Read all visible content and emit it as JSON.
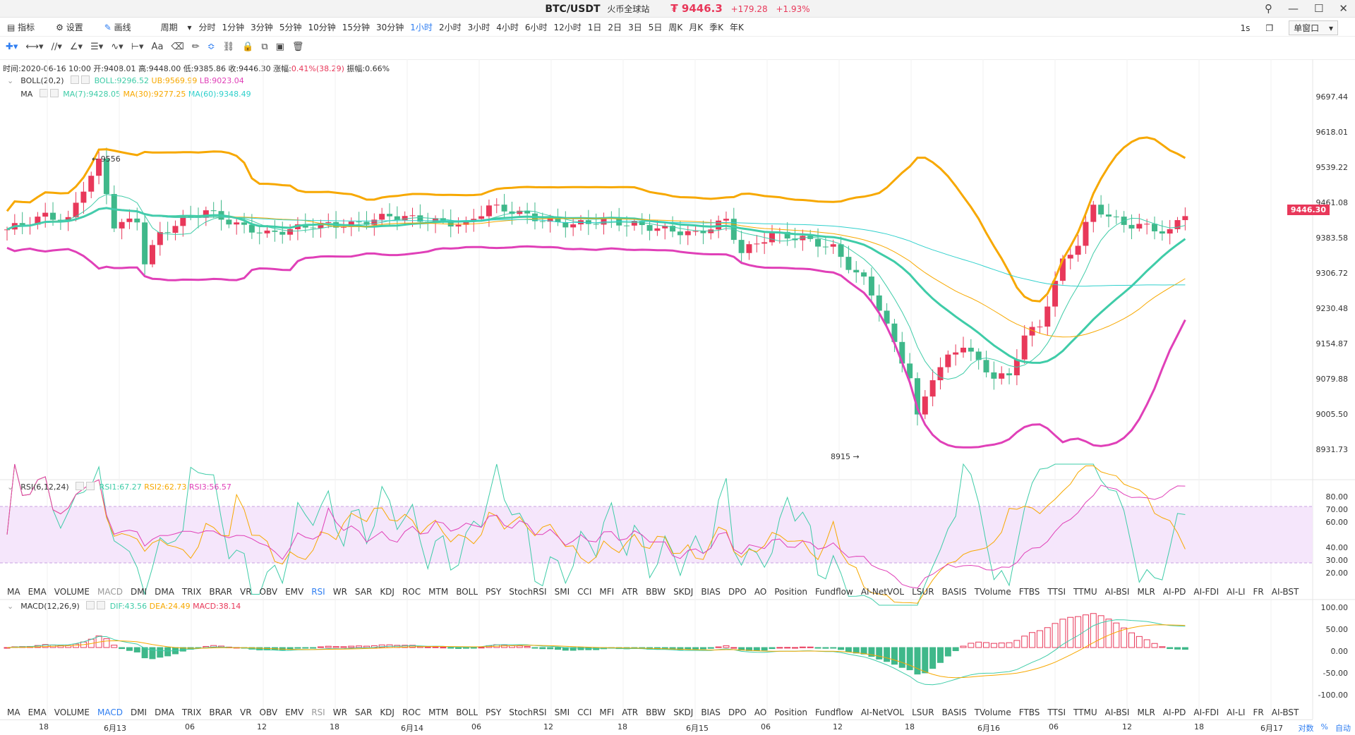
{
  "titlebar": {
    "pair": "BTC/USDT",
    "station": "火币全球站",
    "price": "₮ 9446.3",
    "change_abs": "+179.28",
    "change_pct": "+1.93%"
  },
  "toolbar1": {
    "indicator": "指标",
    "settings": "设置",
    "draw": "画线",
    "period_label": "周期",
    "periods": [
      "分时",
      "1分钟",
      "3分钟",
      "5分钟",
      "10分钟",
      "15分钟",
      "30分钟",
      "1小时",
      "2小时",
      "3小时",
      "4小时",
      "6小时",
      "12小时",
      "1日",
      "2日",
      "3日",
      "5日",
      "周K",
      "月K",
      "季K",
      "年K"
    ],
    "active_period": "1小时",
    "right_interval": "1s",
    "single_window": "单窗口"
  },
  "infoline": {
    "time": "时间:2020-06-16 10:00",
    "open": "开:9408.01",
    "high": "高:9448.00",
    "low": "低:9385.86",
    "close": "收:9446.30",
    "change_label": "涨幅:",
    "change_value": "0.41%(38.29)",
    "amplitude": "振幅:0.66%"
  },
  "boll": {
    "name": "BOLL(20,2)",
    "mid": "BOLL:9296.52",
    "ub": "UB:9569.99",
    "lb": "LB:9023.04"
  },
  "ma": {
    "name": "MA",
    "ma7": "MA(7):9428.05",
    "ma30": "MA(30):9277.25",
    "ma60": "MA(60):9348.49"
  },
  "rsi": {
    "name": "RSI(6,12,24)",
    "r1": "RSI1:67.27",
    "r2": "RSI2:62.73",
    "r3": "RSI3:56.57"
  },
  "macd": {
    "name": "MACD(12,26,9)",
    "dif": "DIF:43.56",
    "dea": "DEA:24.49",
    "macd": "MACD:38.14"
  },
  "price_axis": [
    "9697.44",
    "9618.01",
    "9539.22",
    "9461.08",
    "9383.58",
    "9306.72",
    "9230.48",
    "9154.87",
    "9079.88",
    "9005.50",
    "8931.73"
  ],
  "current_price_tag": "9446.30",
  "high_mark": "← 9556",
  "low_mark": "8915 →",
  "rsi_axis": [
    "80.00",
    "70.00",
    "60.00",
    "40.00",
    "30.00",
    "20.00"
  ],
  "macd_axis": [
    "100.00",
    "50.00",
    "0.00",
    "-50.00",
    "-100.00"
  ],
  "indicator_tabs_1": [
    "MA",
    "EMA",
    "VOLUME",
    "MACD",
    "DMI",
    "DMA",
    "TRIX",
    "BRAR",
    "VR",
    "OBV",
    "EMV",
    "RSI",
    "WR",
    "SAR",
    "KDJ",
    "ROC",
    "MTM",
    "BOLL",
    "PSY",
    "StochRSI",
    "SMI",
    "CCI",
    "MFI",
    "ATR",
    "BBW",
    "SKDJ",
    "BIAS",
    "DPO",
    "AO",
    "Position",
    "Fundflow",
    "AI-NetVOL",
    "LSUR",
    "BASIS",
    "TVolume",
    "FTBS",
    "TTSI",
    "TTMU",
    "AI-BSI",
    "MLR",
    "AI-PD",
    "AI-FDI",
    "AI-LI",
    "FR",
    "AI-BST"
  ],
  "indicator_tabs_2": [
    "MA",
    "EMA",
    "VOLUME",
    "MACD",
    "DMI",
    "DMA",
    "TRIX",
    "BRAR",
    "VR",
    "OBV",
    "EMV",
    "RSI",
    "WR",
    "SAR",
    "KDJ",
    "ROC",
    "MTM",
    "BOLL",
    "PSY",
    "StochRSI",
    "SMI",
    "CCI",
    "MFI",
    "ATR",
    "BBW",
    "SKDJ",
    "BIAS",
    "DPO",
    "AO",
    "Position",
    "Fundflow",
    "AI-NetVOL",
    "LSUR",
    "BASIS",
    "TVolume",
    "FTBS",
    "TTSI",
    "TTMU",
    "AI-BSI",
    "MLR",
    "AI-PD",
    "AI-FDI",
    "AI-LI",
    "FR",
    "AI-BST"
  ],
  "date_axis": [
    "18",
    "6月13",
    "06",
    "12",
    "18",
    "6月14",
    "06",
    "12",
    "18",
    "6月15",
    "06",
    "12",
    "18",
    "6月16",
    "06",
    "12",
    "18",
    "6月17"
  ],
  "corner": {
    "log": "对数",
    "pct": "%",
    "auto": "自动"
  },
  "colors": {
    "up": "#e8385a",
    "down": "#3fb88a",
    "boll_mid": "#3fcca8",
    "boll_ub": "#f7a800",
    "boll_lb": "#e040b8"
  }
}
